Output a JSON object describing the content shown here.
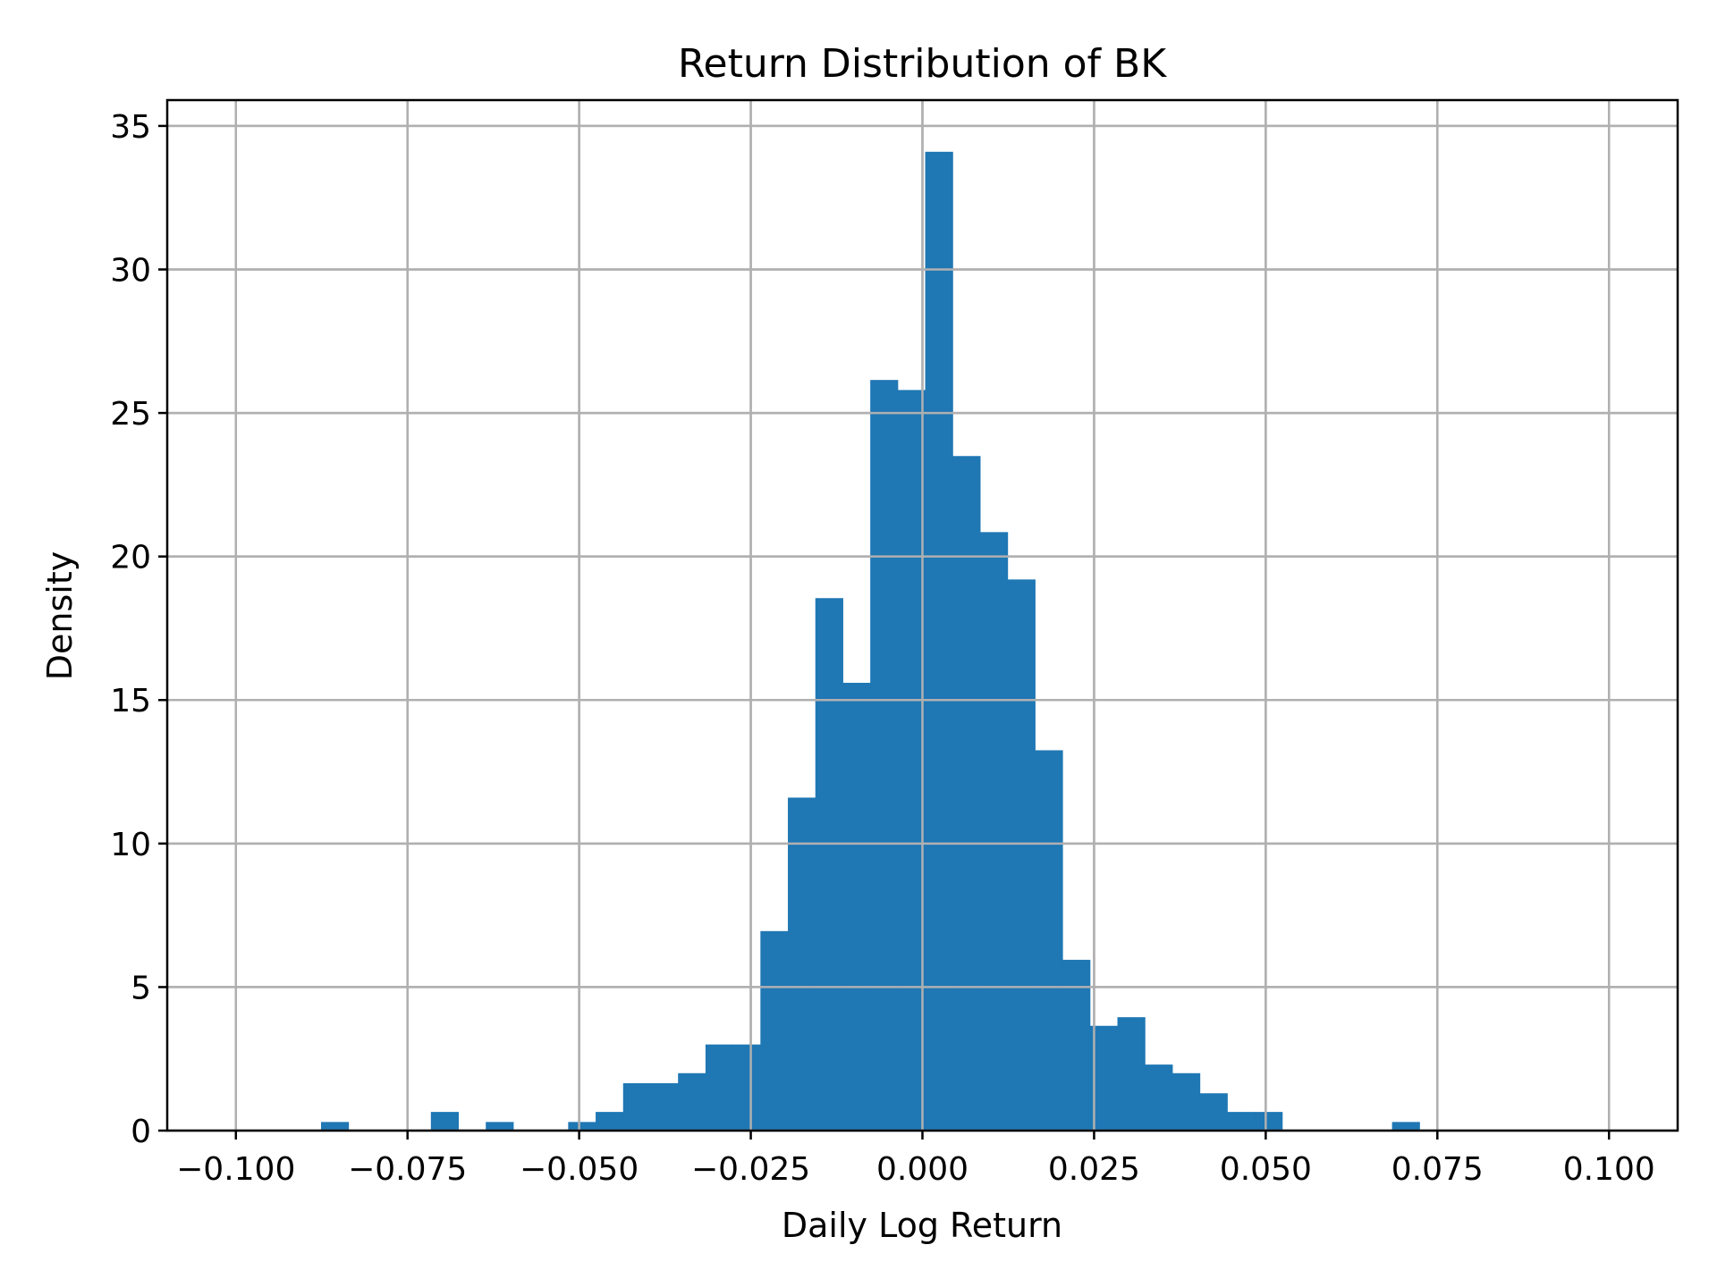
{
  "chart_data": {
    "type": "bar",
    "subtype": "histogram",
    "title": "Return Distribution of BK",
    "xlabel": "Daily Log Return",
    "ylabel": "Density",
    "xlim": [
      -0.11,
      0.11
    ],
    "ylim": [
      0,
      35.9
    ],
    "xticks": [
      -0.1,
      -0.075,
      -0.05,
      -0.025,
      0.0,
      0.025,
      0.05,
      0.075,
      0.1
    ],
    "xtick_labels": [
      "−0.100",
      "−0.075",
      "−0.050",
      "−0.025",
      "0.000",
      "0.025",
      "0.050",
      "0.075",
      "0.100"
    ],
    "yticks": [
      0,
      5,
      10,
      15,
      20,
      25,
      30,
      35
    ],
    "ytick_labels": [
      "0",
      "5",
      "10",
      "15",
      "20",
      "25",
      "30",
      "35"
    ],
    "grid": true,
    "legend": null,
    "color": "#1f77b4",
    "bin_start": -0.0876,
    "bin_width": 0.004,
    "values": [
      0.3,
      0,
      0,
      0,
      0.65,
      0,
      0.3,
      0,
      0,
      0.3,
      0.65,
      1.65,
      1.65,
      2.0,
      3.0,
      3.0,
      6.95,
      11.6,
      18.55,
      15.6,
      26.15,
      25.8,
      34.1,
      23.5,
      20.85,
      19.2,
      13.25,
      5.95,
      3.65,
      3.95,
      2.3,
      2.0,
      1.3,
      0.65,
      0.65,
      0,
      0,
      0,
      0,
      0.3
    ]
  }
}
